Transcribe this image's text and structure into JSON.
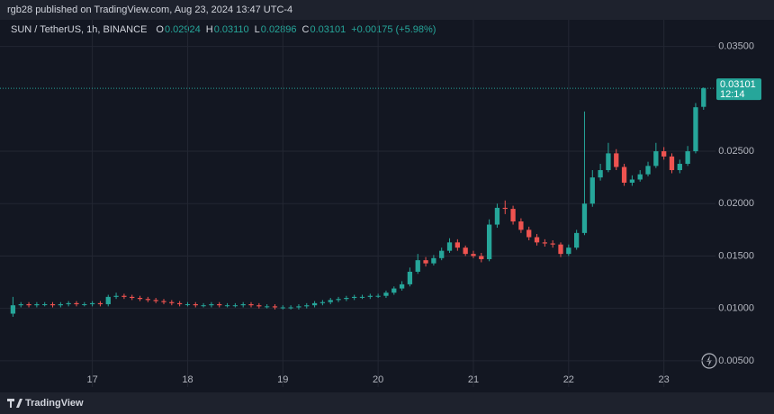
{
  "header": {
    "published": "rgb28 published on TradingView.com, Aug 23, 2024 13:47 UTC-4",
    "brand": "TradingView"
  },
  "chart_data": {
    "type": "candlestick",
    "symbol": "SUN / TetherUS, 1h, BINANCE",
    "ohlc_legend": [
      {
        "key": "O",
        "value": "0.02924"
      },
      {
        "key": "H",
        "value": "0.03110"
      },
      {
        "key": "L",
        "value": "0.02896"
      },
      {
        "key": "C",
        "value": "0.03101"
      }
    ],
    "change": "+0.00175 (+5.98%)",
    "last_price": {
      "value": 0.03101,
      "label": "0.03101"
    },
    "countdown": "12:14",
    "up_color": "#26a69a",
    "down_color": "#ef5350",
    "grid": true,
    "xlim": [
      3,
      181
    ],
    "xticks": [
      {
        "value": 24,
        "label": "17"
      },
      {
        "value": 48,
        "label": "18"
      },
      {
        "value": 72,
        "label": "19"
      },
      {
        "value": 96,
        "label": "20"
      },
      {
        "value": 120,
        "label": "21"
      },
      {
        "value": 144,
        "label": "22"
      },
      {
        "value": 168,
        "label": "23"
      }
    ],
    "ylim": [
      0.0025,
      0.036
    ],
    "yticks": [
      {
        "value": 0.035,
        "label": "0.03500"
      },
      {
        "value": 0.025,
        "label": "0.02500"
      },
      {
        "value": 0.02,
        "label": "0.02000"
      },
      {
        "value": 0.015,
        "label": "0.01500"
      },
      {
        "value": 0.01,
        "label": "0.01000"
      },
      {
        "value": 0.005,
        "label": "0.00500"
      }
    ],
    "x": [
      4,
      6,
      8,
      10,
      12,
      14,
      16,
      18,
      20,
      22,
      24,
      26,
      28,
      30,
      32,
      34,
      36,
      38,
      40,
      42,
      44,
      46,
      48,
      50,
      52,
      54,
      56,
      58,
      60,
      62,
      64,
      66,
      68,
      70,
      72,
      74,
      76,
      78,
      80,
      82,
      84,
      86,
      88,
      90,
      92,
      94,
      96,
      98,
      100,
      102,
      104,
      106,
      108,
      110,
      112,
      114,
      116,
      118,
      120,
      122,
      124,
      126,
      128,
      130,
      132,
      134,
      136,
      138,
      140,
      142,
      144,
      146,
      148,
      150,
      152,
      154,
      156,
      158,
      160,
      162,
      164,
      166,
      168,
      170,
      172,
      174,
      176,
      178
    ],
    "open": [
      0.0095,
      0.0103,
      0.0104,
      0.0103,
      0.0104,
      0.0104,
      0.0103,
      0.0104,
      0.0105,
      0.0104,
      0.0104,
      0.0105,
      0.0104,
      0.0111,
      0.0112,
      0.0111,
      0.011,
      0.0109,
      0.0108,
      0.0107,
      0.0106,
      0.0105,
      0.0104,
      0.0104,
      0.0103,
      0.0103,
      0.0104,
      0.0103,
      0.0103,
      0.0103,
      0.0104,
      0.0103,
      0.0102,
      0.0102,
      0.0101,
      0.0101,
      0.0101,
      0.0102,
      0.0103,
      0.0105,
      0.0106,
      0.0108,
      0.0109,
      0.011,
      0.0111,
      0.0111,
      0.0112,
      0.0112,
      0.0115,
      0.0119,
      0.0123,
      0.0135,
      0.0146,
      0.0143,
      0.0148,
      0.0155,
      0.0163,
      0.0158,
      0.0152,
      0.015,
      0.0147,
      0.018,
      0.0196,
      0.0195,
      0.0183,
      0.0175,
      0.0168,
      0.0163,
      0.0162,
      0.0161,
      0.0152,
      0.0158,
      0.0172,
      0.02,
      0.0225,
      0.0232,
      0.0248,
      0.0235,
      0.022,
      0.0223,
      0.0228,
      0.0236,
      0.025,
      0.0245,
      0.0232,
      0.0238,
      0.025,
      0.02924
    ],
    "high": [
      0.0111,
      0.0106,
      0.0106,
      0.0106,
      0.0106,
      0.0106,
      0.0106,
      0.0107,
      0.0107,
      0.0106,
      0.0107,
      0.0107,
      0.0113,
      0.0115,
      0.0114,
      0.0113,
      0.0112,
      0.0111,
      0.011,
      0.0109,
      0.0108,
      0.0107,
      0.0106,
      0.0106,
      0.0105,
      0.0106,
      0.0106,
      0.0105,
      0.0105,
      0.0106,
      0.0106,
      0.0105,
      0.0104,
      0.0104,
      0.0103,
      0.0103,
      0.0104,
      0.0105,
      0.0107,
      0.0108,
      0.011,
      0.0111,
      0.0112,
      0.0113,
      0.0113,
      0.0114,
      0.0114,
      0.0117,
      0.0121,
      0.0126,
      0.0139,
      0.0152,
      0.0149,
      0.0151,
      0.0158,
      0.0167,
      0.0166,
      0.016,
      0.0155,
      0.0153,
      0.0185,
      0.02,
      0.0203,
      0.0198,
      0.0186,
      0.0178,
      0.0171,
      0.0166,
      0.0165,
      0.0163,
      0.0161,
      0.0175,
      0.0288,
      0.0232,
      0.0238,
      0.0258,
      0.0252,
      0.0238,
      0.0227,
      0.0232,
      0.024,
      0.0258,
      0.0254,
      0.0248,
      0.0242,
      0.0255,
      0.0296,
      0.0311
    ],
    "low": [
      0.0092,
      0.0101,
      0.0101,
      0.0101,
      0.0102,
      0.0101,
      0.0101,
      0.0102,
      0.0102,
      0.0102,
      0.0102,
      0.0102,
      0.0102,
      0.0109,
      0.0109,
      0.0108,
      0.0107,
      0.0106,
      0.0105,
      0.0104,
      0.0103,
      0.0102,
      0.0102,
      0.0101,
      0.0101,
      0.0101,
      0.0101,
      0.0101,
      0.0101,
      0.0101,
      0.0101,
      0.01,
      0.01,
      0.0099,
      0.0099,
      0.0099,
      0.0099,
      0.01,
      0.0101,
      0.0103,
      0.0104,
      0.0106,
      0.0107,
      0.0108,
      0.0109,
      0.0109,
      0.011,
      0.011,
      0.0113,
      0.0117,
      0.0121,
      0.0133,
      0.014,
      0.0141,
      0.0146,
      0.0153,
      0.0155,
      0.015,
      0.0148,
      0.0144,
      0.0145,
      0.0177,
      0.019,
      0.018,
      0.0172,
      0.0165,
      0.016,
      0.0159,
      0.0158,
      0.0149,
      0.015,
      0.0156,
      0.017,
      0.0197,
      0.0222,
      0.023,
      0.0232,
      0.0217,
      0.0217,
      0.0221,
      0.0226,
      0.0234,
      0.0242,
      0.0229,
      0.0229,
      0.0236,
      0.0248,
      0.02896
    ],
    "close": [
      0.0103,
      0.0104,
      0.0103,
      0.0104,
      0.0104,
      0.0103,
      0.0104,
      0.0105,
      0.0104,
      0.0104,
      0.0105,
      0.0104,
      0.0111,
      0.0112,
      0.0111,
      0.011,
      0.0109,
      0.0108,
      0.0107,
      0.0106,
      0.0105,
      0.0104,
      0.0104,
      0.0103,
      0.0103,
      0.0104,
      0.0103,
      0.0103,
      0.0103,
      0.0104,
      0.0103,
      0.0102,
      0.0102,
      0.0101,
      0.0101,
      0.0101,
      0.0102,
      0.0103,
      0.0105,
      0.0106,
      0.0108,
      0.0109,
      0.011,
      0.0111,
      0.0111,
      0.0112,
      0.0112,
      0.0115,
      0.0119,
      0.0123,
      0.0135,
      0.0146,
      0.0143,
      0.0148,
      0.0155,
      0.0163,
      0.0158,
      0.0152,
      0.015,
      0.0147,
      0.018,
      0.0196,
      0.0195,
      0.0183,
      0.0175,
      0.0168,
      0.0163,
      0.0162,
      0.0161,
      0.0152,
      0.0158,
      0.0172,
      0.02,
      0.0225,
      0.0232,
      0.0248,
      0.0235,
      0.022,
      0.0223,
      0.0228,
      0.0236,
      0.025,
      0.0245,
      0.0232,
      0.0238,
      0.025,
      0.0292,
      0.03101
    ]
  }
}
